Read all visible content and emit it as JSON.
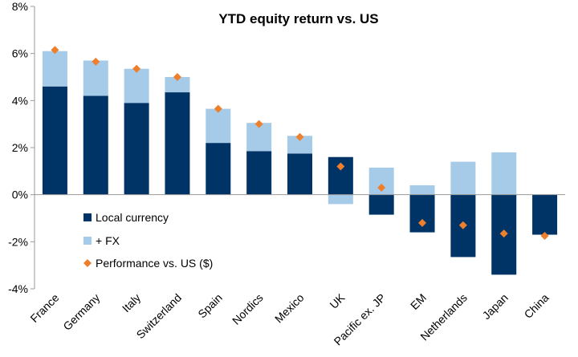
{
  "chart_data": {
    "type": "bar",
    "title": "YTD equity return vs. US",
    "xlabel": "",
    "ylabel": "",
    "ylim": [
      -4,
      8
    ],
    "yticks": [
      -4,
      -2,
      0,
      2,
      4,
      6,
      8
    ],
    "ytick_labels": [
      "-4%",
      "-2%",
      "0%",
      "2%",
      "4%",
      "6%",
      "8%"
    ],
    "grid": false,
    "legend_position": "left-middle",
    "categories": [
      "France",
      "Germany",
      "Italy",
      "Switzerland",
      "Spain",
      "Nordics",
      "Mexico",
      "UK",
      "Pacific ex. JP",
      "EM",
      "Netherlands",
      "Japan",
      "China"
    ],
    "series": [
      {
        "name": "Local currency",
        "kind": "stacked-bar",
        "color": "#003366",
        "values": [
          4.6,
          4.2,
          3.9,
          4.35,
          2.2,
          1.85,
          1.75,
          1.6,
          -0.85,
          -1.6,
          -2.65,
          -3.4,
          -1.7
        ]
      },
      {
        "name": "+ FX",
        "kind": "stacked-bar",
        "color": "#a6cbe8",
        "values": [
          1.5,
          1.5,
          1.45,
          0.65,
          1.45,
          1.2,
          0.75,
          -0.4,
          1.15,
          0.4,
          1.4,
          1.8,
          0.0
        ]
      },
      {
        "name": "Performance vs. US ($)",
        "kind": "marker",
        "color": "#ee7f2d",
        "values": [
          6.15,
          5.65,
          5.35,
          5.0,
          3.65,
          3.0,
          2.45,
          1.2,
          0.3,
          -1.2,
          -1.3,
          -1.65,
          -1.75
        ]
      }
    ]
  }
}
